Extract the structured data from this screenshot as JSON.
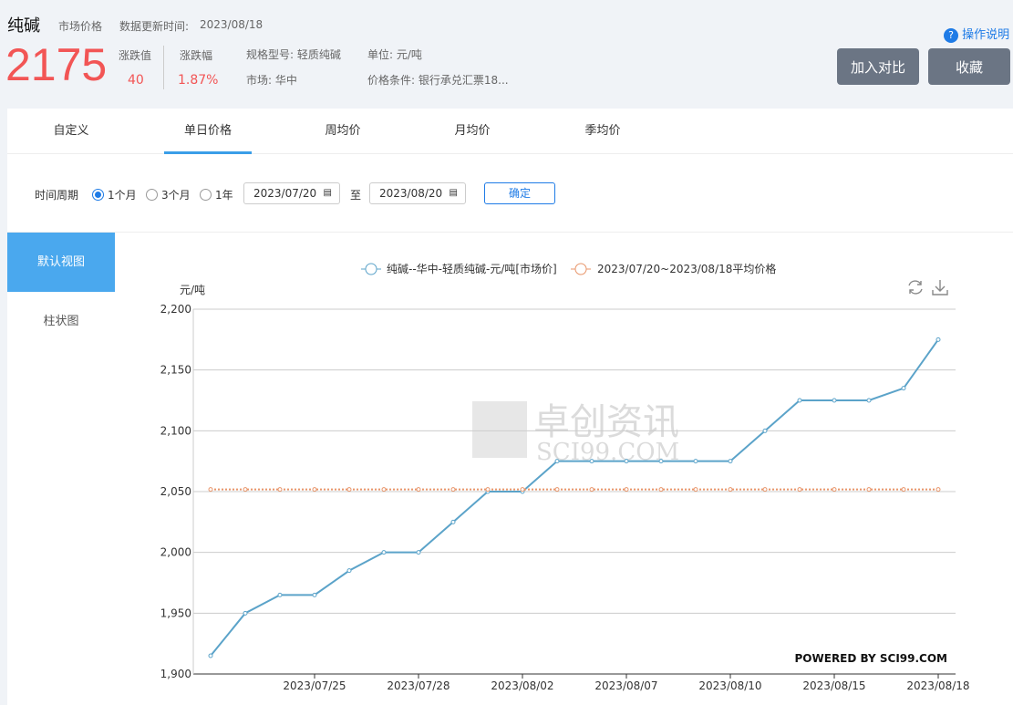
{
  "header": {
    "title": "纯碱",
    "type": "市场价格",
    "update_label": "数据更新时间:",
    "update_date": "2023/08/18",
    "price": "2175",
    "change_label": "涨跌值",
    "change": "40",
    "pct_label": "涨跌幅",
    "pct": "1.87%",
    "spec": "规格型号: 轻质纯碱",
    "market": "市场: 华中",
    "unit": "单位: 元/吨",
    "condition": "价格条件: 银行承兑汇票18...",
    "help": "操作说明",
    "compare_btn": "加入对比",
    "favorite_btn": "收藏"
  },
  "tabs": [
    "自定义",
    "单日价格",
    "周均价",
    "月均价",
    "季均价"
  ],
  "active_tab": 1,
  "filter": {
    "label": "时间周期",
    "options": [
      "1个月",
      "3个月",
      "1年"
    ],
    "selected": 0,
    "start": "2023/07/20",
    "to": "至",
    "end": "2023/08/20",
    "confirm": "确定"
  },
  "side": {
    "items": [
      "默认视图",
      "柱状图"
    ],
    "active": 0
  },
  "colors": {
    "up": "#f25555",
    "accent": "#3a9ee8",
    "series": "#5ba3c9",
    "avg": "#e8956a"
  },
  "watermark": {
    "cn": "卓创资讯",
    "en": "SCI99.COM"
  },
  "powered": "POWERED BY SCI99.COM",
  "chart_data": {
    "type": "line",
    "ylabel": "元/吨",
    "ylim": [
      1900,
      2200
    ],
    "yticks": [
      "1,900",
      "1,950",
      "2,000",
      "2,050",
      "2,100",
      "2,150",
      "2,200"
    ],
    "xtick_labels": [
      "2023/07/25",
      "2023/07/28",
      "2023/08/02",
      "2023/08/07",
      "2023/08/10",
      "2023/08/15",
      "2023/08/18"
    ],
    "x": [
      "2023/07/20",
      "2023/07/21",
      "2023/07/24",
      "2023/07/25",
      "2023/07/26",
      "2023/07/27",
      "2023/07/28",
      "2023/07/31",
      "2023/08/01",
      "2023/08/02",
      "2023/08/03",
      "2023/08/04",
      "2023/08/07",
      "2023/08/08",
      "2023/08/09",
      "2023/08/10",
      "2023/08/11",
      "2023/08/14",
      "2023/08/15",
      "2023/08/16",
      "2023/08/17",
      "2023/08/18"
    ],
    "series": [
      {
        "name": "纯碱--华中-轻质纯碱-元/吨[市场价]",
        "values": [
          1915,
          1950,
          1965,
          1965,
          1985,
          2000,
          2000,
          2025,
          2050,
          2050,
          2075,
          2075,
          2075,
          2075,
          2075,
          2075,
          2100,
          2125,
          2125,
          2125,
          2135,
          2175
        ]
      },
      {
        "name": "2023/07/20~2023/08/18平均价格",
        "values": [
          2051.8,
          2051.8,
          2051.8,
          2051.8,
          2051.8,
          2051.8,
          2051.8,
          2051.8,
          2051.8,
          2051.8,
          2051.8,
          2051.8,
          2051.8,
          2051.8,
          2051.8,
          2051.8,
          2051.8,
          2051.8,
          2051.8,
          2051.8,
          2051.8,
          2051.8
        ]
      }
    ],
    "grid": true,
    "legend": "top"
  }
}
